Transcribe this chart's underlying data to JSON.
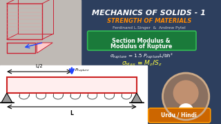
{
  "bg_color": "#2d3f5e",
  "title_main": "MECHANICS OF SOLIDS - 1",
  "title_sub": "STRENGTH OF MATERIALS",
  "authors": "Ferdinand L.Singer  &  Andrew Pytel",
  "box_bg": "#1a7a3a",
  "box_border": "#33bb55",
  "formula1_a": "$\\sigma_{rupture}$",
  "formula1_b": "= 1.5 P",
  "formula1_c": "$_{rupture}$",
  "formula1_d": "L/bh²",
  "formula2": "$\\sigma_{Max} = M_z/S_z$",
  "urdu_label": "Urdu / Hindi",
  "urdu_bg": "#cc6600",
  "title_color": "#ffffff",
  "title_sub_color": "#ff8800",
  "authors_color": "#cccccc",
  "formula_color": "#ffffff",
  "beam_color": "#cc2222",
  "arrow_color": "#2244ff",
  "left_panel_color": "#d0c8c0",
  "bottom_panel_color": "#e8e8e4"
}
